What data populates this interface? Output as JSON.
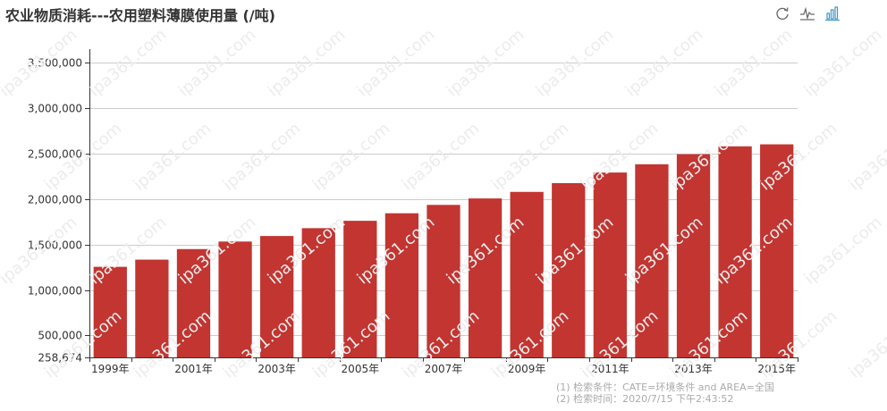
{
  "title": "农业物质消耗---农用塑料薄膜使用量 (/吨)",
  "toolbox": [
    {
      "icon": "refresh-icon",
      "label": "restore"
    },
    {
      "icon": "line-chart-icon",
      "label": "line"
    },
    {
      "icon": "bar-chart-icon",
      "label": "bar"
    }
  ],
  "footnote": {
    "line1": "(1) 检索条件：CATE=环境条件 and AREA=全国",
    "line2": "(2) 检索时间：2020/7/15 下午2:43:52"
  },
  "watermark_text": "ipa361.com",
  "colors": {
    "bar": "#c23531",
    "grid": "#cccccc",
    "axis": "#333333"
  },
  "chart_data": {
    "type": "bar",
    "categories": [
      "1999年",
      "2000年",
      "2001年",
      "2002年",
      "2003年",
      "2004年",
      "2005年",
      "2006年",
      "2007年",
      "2008年",
      "2009年",
      "2010年",
      "2011年",
      "2012年",
      "2013年",
      "2014年",
      "2015年"
    ],
    "values": [
      1255000,
      1334000,
      1450000,
      1533000,
      1594000,
      1680000,
      1761000,
      1844000,
      1936000,
      2007000,
      2079000,
      2175000,
      2292000,
      2383000,
      2494000,
      2580000,
      2602000
    ],
    "yticks": [
      258674,
      500000,
      1000000,
      1500000,
      2000000,
      2500000,
      3000000,
      3500000
    ],
    "ytick_labels": [
      "258,674",
      "500,000",
      "1,000,000",
      "1,500,000",
      "2,000,000",
      "2,500,000",
      "3,000,000",
      "3,500,000"
    ],
    "xtick_labels": [
      "1999年",
      "2001年",
      "2003年",
      "2005年",
      "2007年",
      "2009年",
      "2011年",
      "2013年",
      "2015年"
    ],
    "ylim": [
      258674,
      3600000
    ],
    "grid": true,
    "title": "农业物质消耗---农用塑料薄膜使用量 (/吨)"
  }
}
